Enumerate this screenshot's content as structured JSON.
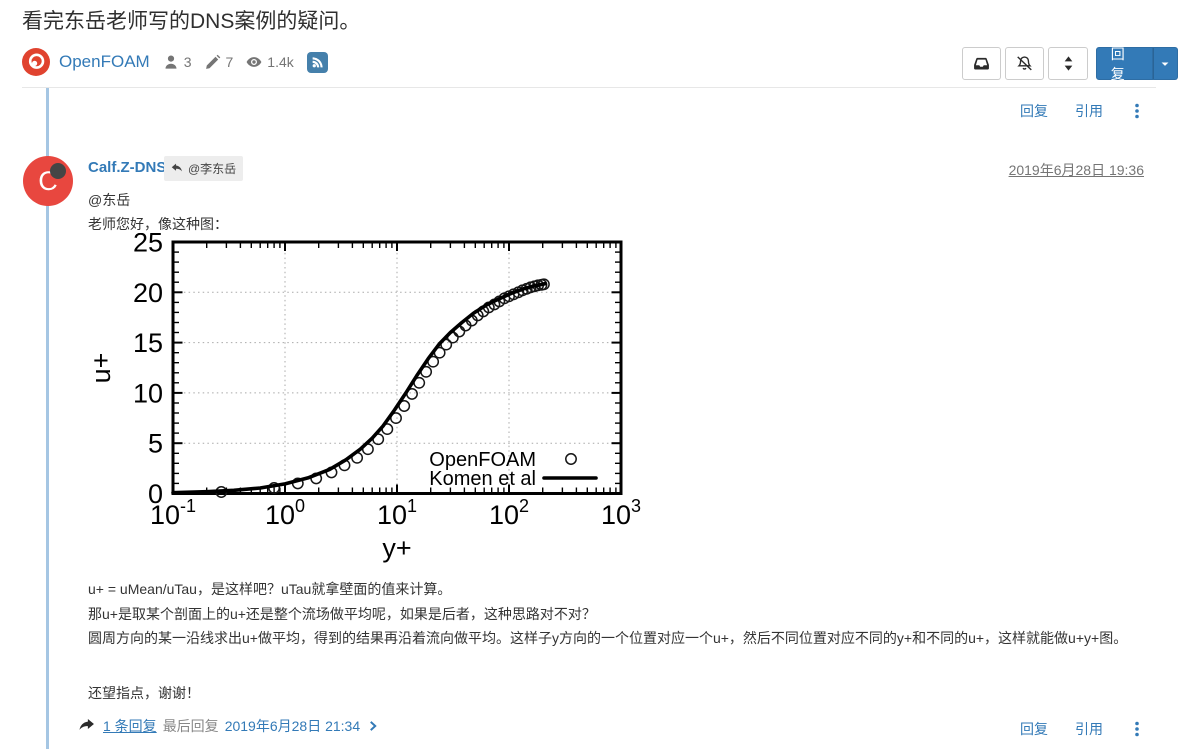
{
  "page": {
    "title": "看完东岳老师写的DNS案例的疑问。"
  },
  "category": {
    "name": "OpenFOAM",
    "icon": "cfd-china-logo-icon"
  },
  "stats": {
    "participants": "3",
    "posts": "7",
    "views": "1.4k"
  },
  "topic_tools": {
    "mark_read_icon": "inbox-icon",
    "watch_icon": "bell-slash-icon",
    "sort_icon": "sort-icon",
    "reply_button": "回复",
    "reply_caret_icon": "caret-down-icon",
    "rss_icon": "rss-icon"
  },
  "post_actions": {
    "reply": "回复",
    "quote": "引用",
    "menu_icon": "kebab-icon"
  },
  "post": {
    "author": "Calf.Z-DNS",
    "avatar_letter": "C",
    "reply_to": "@李东岳",
    "timestamp": "2019年6月28日 19:36",
    "body": {
      "mention": "@东岳",
      "intro": "老师您好，像这种图：",
      "p1": "u+ = uMean/uTau，是这样吧？uTau就拿壁面的值来计算。",
      "p2_line1": "那u+是取某个剖面上的u+还是整个流场做平均呢，如果是后者，这种思路对不对？",
      "p2_line2": "圆周方向的某一沿线求出u+做平均，得到的结果再沿着流向做平均。这样子y方向的一个位置对应一个u+，然后不同位置对应不同的y+和不同的u+，这样就能做u+y+图。",
      "p3": "还望指点，谢谢！"
    },
    "footer": {
      "replies_link": "1 条回复",
      "last_reply_label": "最后回复",
      "last_reply_time": "2019年6月28日 21:34"
    }
  },
  "colors": {
    "link_blue": "#337ab7",
    "category_red": "#e0432f",
    "avatar_red": "#e8473f",
    "timeline_blue": "#a5c6e3",
    "rss_blue": "#4580ab",
    "status_dot_gray": "#454545"
  },
  "chart_data": {
    "type": "scatter",
    "title": "",
    "xlabel": "y+",
    "ylabel": "u+",
    "x_scale": "log",
    "xlim": [
      0.1,
      1000
    ],
    "ylim": [
      0,
      25
    ],
    "x_ticks": [
      "10^-1",
      "10^0",
      "10^1",
      "10^2",
      "10^3"
    ],
    "y_ticks": [
      0,
      5,
      10,
      15,
      20,
      25
    ],
    "grid": true,
    "legend_position": "bottom-right",
    "series": [
      {
        "name": "OpenFOAM",
        "type": "scatter",
        "marker": "open-circle",
        "x": [
          0.27,
          0.8,
          1.3,
          1.9,
          2.6,
          3.4,
          4.4,
          5.5,
          6.8,
          8.2,
          9.8,
          11.6,
          13.6,
          15.8,
          18.2,
          21,
          24,
          27.5,
          31.5,
          36,
          41,
          46.5,
          52.5,
          59,
          66,
          74,
          82,
          91,
          100,
          110,
          121,
          132,
          144,
          156,
          169,
          182,
          195,
          205
        ],
        "y": [
          0.15,
          0.55,
          1.0,
          1.5,
          2.1,
          2.8,
          3.55,
          4.4,
          5.4,
          6.4,
          7.5,
          8.7,
          9.9,
          11.0,
          12.1,
          13.1,
          14.0,
          14.8,
          15.5,
          16.1,
          16.7,
          17.2,
          17.7,
          18.1,
          18.5,
          18.8,
          19.1,
          19.4,
          19.6,
          19.8,
          20.0,
          20.2,
          20.35,
          20.5,
          20.6,
          20.7,
          20.75,
          20.8
        ]
      },
      {
        "name": "Komen et al",
        "type": "line",
        "x": [
          0.1,
          0.2,
          0.35,
          0.6,
          1,
          1.6,
          2.5,
          3.5,
          4.7,
          6,
          7.5,
          9.5,
          12,
          15,
          19,
          24,
          30,
          38,
          48,
          62,
          80,
          105,
          135,
          170,
          210
        ],
        "y": [
          0.08,
          0.18,
          0.32,
          0.55,
          0.95,
          1.55,
          2.4,
          3.35,
          4.4,
          5.5,
          6.7,
          8.3,
          10.0,
          11.7,
          13.4,
          14.9,
          16.0,
          17.0,
          17.9,
          18.7,
          19.3,
          19.9,
          20.35,
          20.65,
          20.85
        ]
      }
    ]
  }
}
